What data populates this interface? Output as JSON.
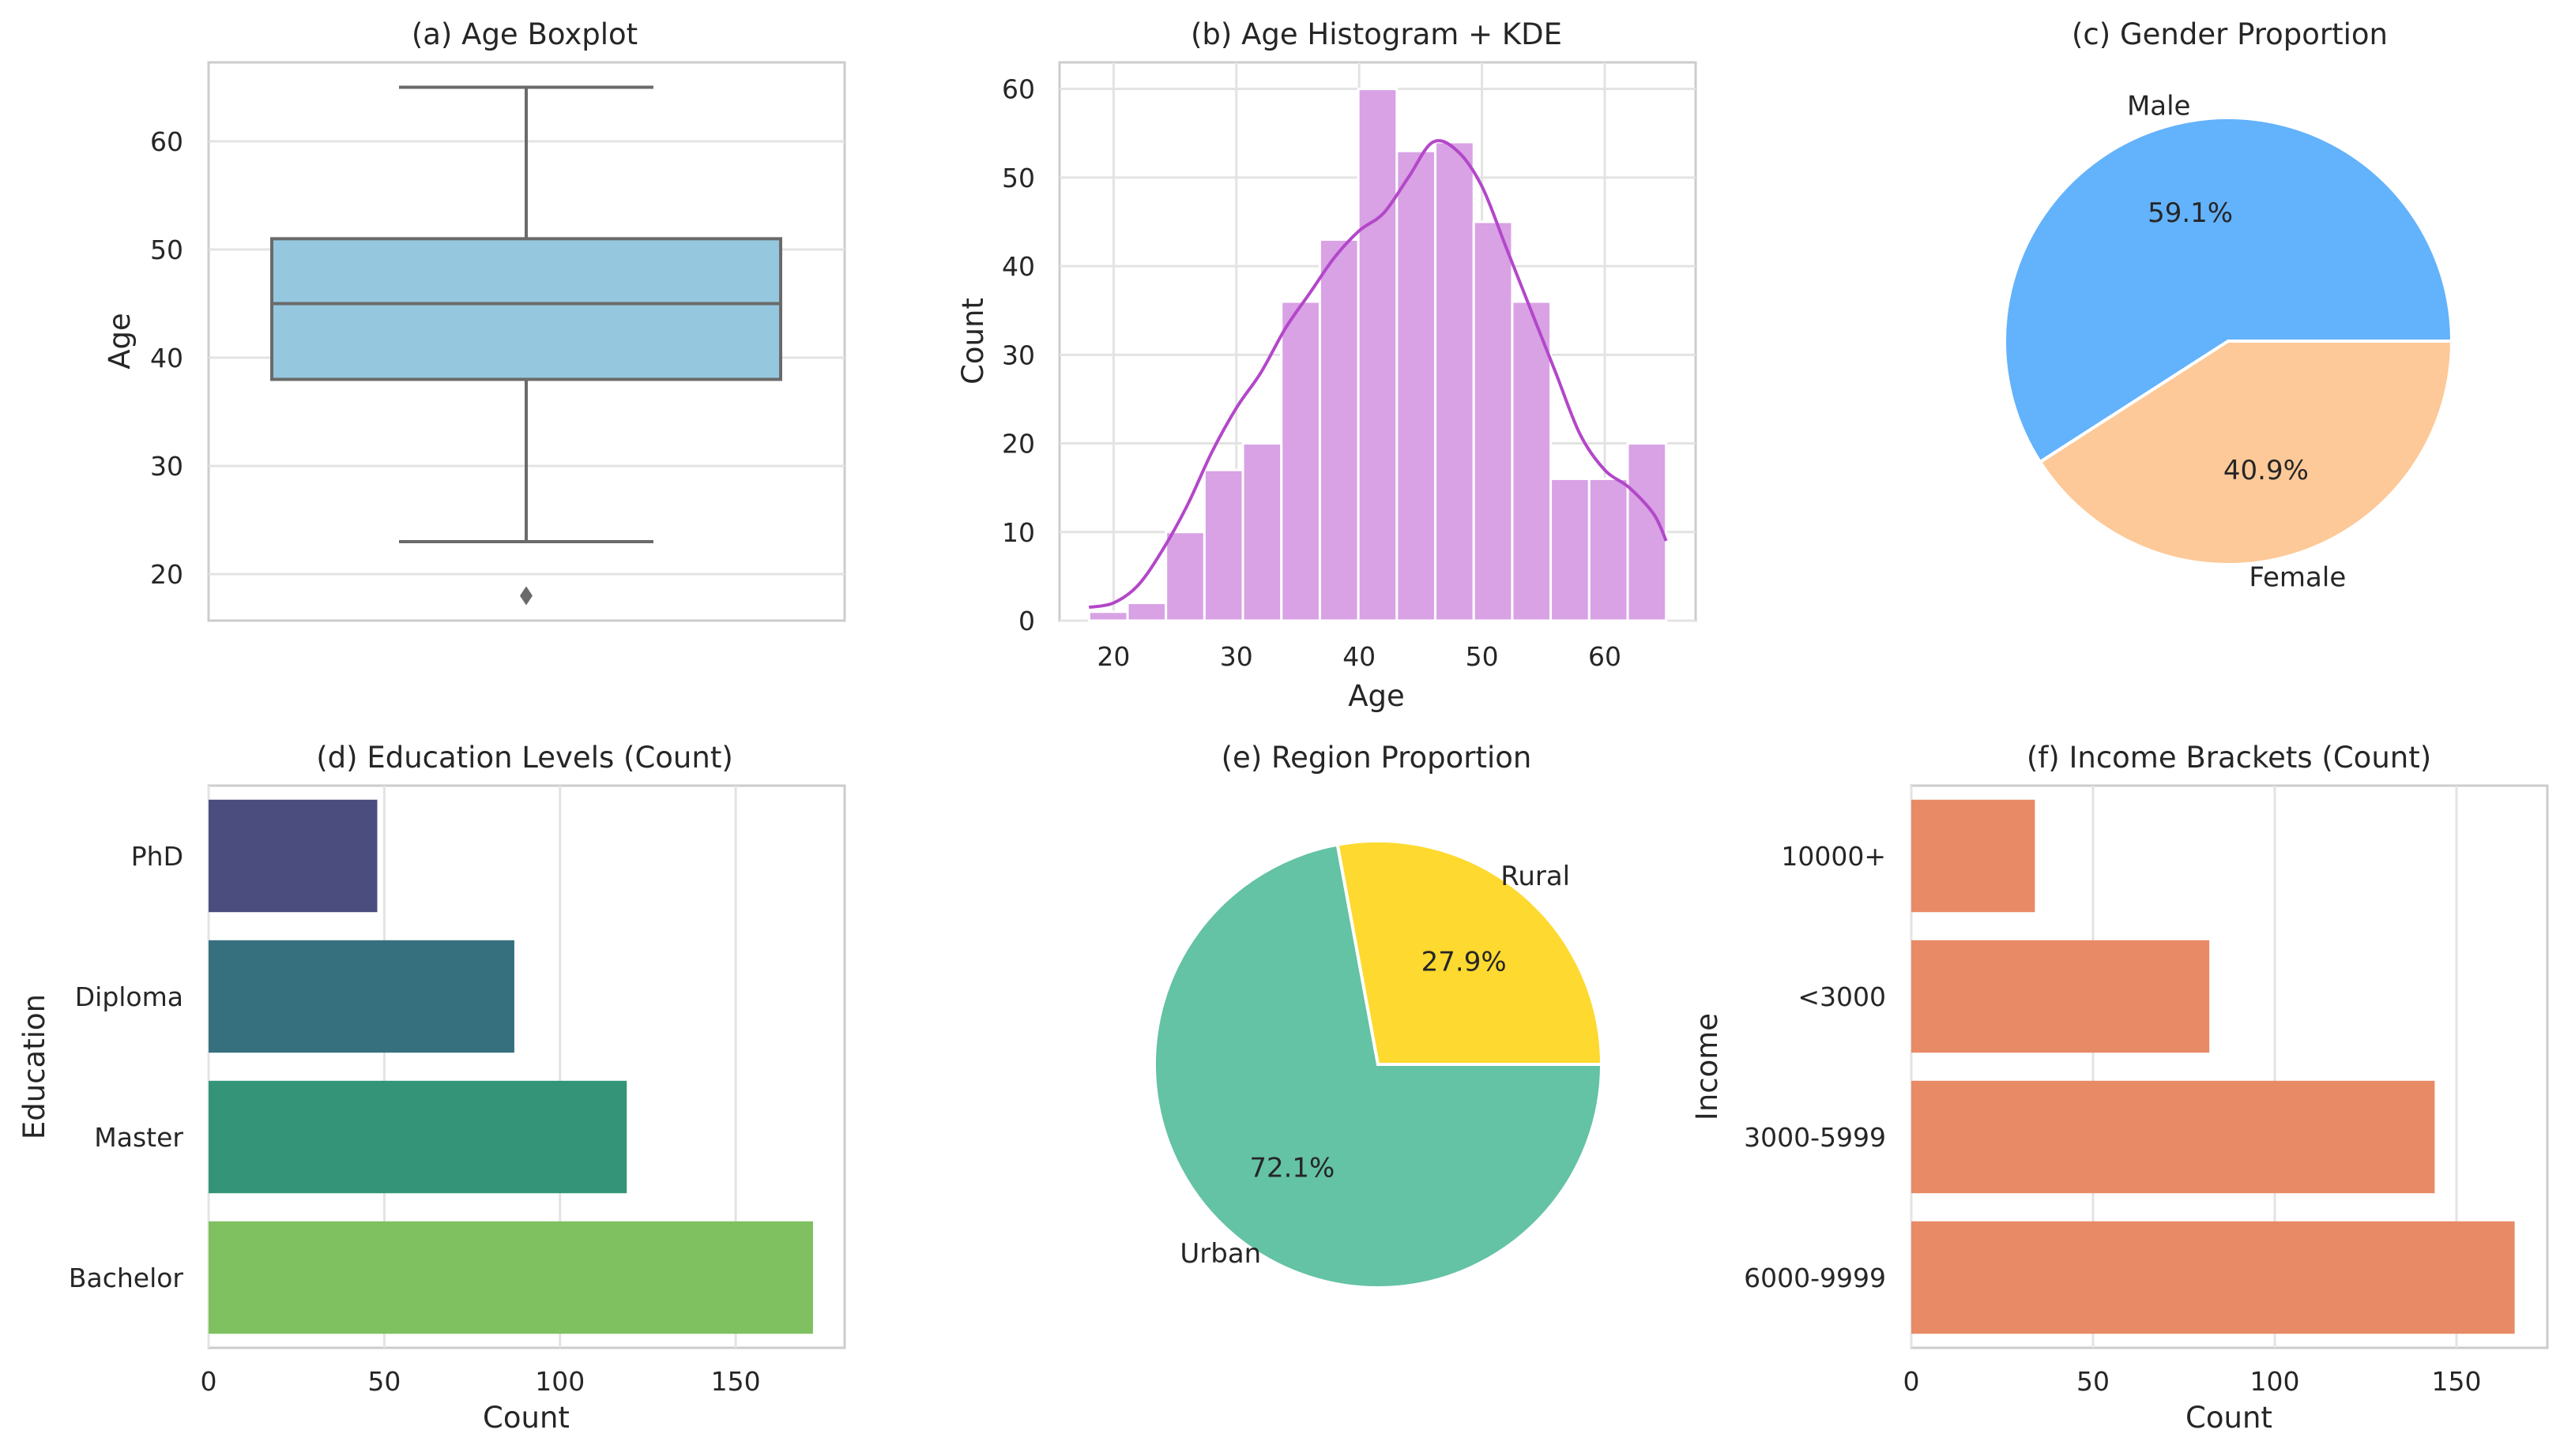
{
  "chart_data": [
    {
      "id": "a",
      "type": "boxplot",
      "title": "(a) Age Boxplot",
      "xlabel": "",
      "ylabel": "Age",
      "ylim": [
        15.7,
        67.3
      ],
      "yticks": [
        20,
        30,
        40,
        50,
        60
      ],
      "box": {
        "whisker_low": 23,
        "q1": 38,
        "median": 45,
        "q3": 51,
        "whisker_high": 65,
        "outliers": [
          18
        ]
      },
      "colors": {
        "box": "#95c8df",
        "edge": "#6a6a6a"
      },
      "grid": true
    },
    {
      "id": "b",
      "type": "bar",
      "subtype": "histogram+kde",
      "title": "(b) Age Histogram + KDE",
      "xlabel": "Age",
      "ylabel": "Count",
      "xlim": [
        15.6,
        67.4
      ],
      "ylim": [
        0,
        63
      ],
      "xticks": [
        20,
        30,
        40,
        50,
        60
      ],
      "yticks": [
        0,
        10,
        20,
        30,
        40,
        50,
        60
      ],
      "bins": {
        "start": 18,
        "end": 65,
        "counts": [
          1,
          2,
          10,
          17,
          20,
          36,
          43,
          60,
          53,
          54,
          45,
          36,
          16,
          16,
          20
        ]
      },
      "kde": [
        [
          18,
          1.5
        ],
        [
          20,
          2
        ],
        [
          22,
          4
        ],
        [
          24,
          8
        ],
        [
          26,
          13
        ],
        [
          28,
          19
        ],
        [
          30,
          24
        ],
        [
          32,
          28
        ],
        [
          34,
          33
        ],
        [
          36,
          37
        ],
        [
          38,
          41
        ],
        [
          40,
          44
        ],
        [
          42,
          46
        ],
        [
          44,
          50
        ],
        [
          46,
          54
        ],
        [
          48,
          53
        ],
        [
          50,
          49
        ],
        [
          52,
          42
        ],
        [
          54,
          35
        ],
        [
          56,
          28
        ],
        [
          58,
          21
        ],
        [
          60,
          17
        ],
        [
          62,
          15
        ],
        [
          64,
          12
        ],
        [
          65,
          9
        ]
      ],
      "colors": {
        "bar": "#d8a2e4",
        "kde": "#b347c9"
      },
      "grid": true
    },
    {
      "id": "c",
      "type": "pie",
      "title": "(c) Gender Proportion",
      "slices": [
        {
          "label": "Male",
          "pct": "59.1%",
          "value": 59.1,
          "color": "#63b2fc"
        },
        {
          "label": "Female",
          "pct": "40.9%",
          "value": 40.9,
          "color": "#fdc998"
        }
      ]
    },
    {
      "id": "d",
      "type": "bar",
      "orientation": "horizontal",
      "title": "(d) Education Levels (Count)",
      "xlabel": "Count",
      "ylabel": "Education",
      "xlim": [
        0,
        181
      ],
      "xticks": [
        0,
        50,
        100,
        150
      ],
      "categories": [
        "PhD",
        "Diploma",
        "Master",
        "Bachelor"
      ],
      "values": [
        48,
        87,
        119,
        172
      ],
      "colors": [
        "#4a4d7d",
        "#36707f",
        "#349478",
        "#7fc160"
      ],
      "grid": true
    },
    {
      "id": "e",
      "type": "pie",
      "title": "(e) Region Proportion",
      "slices": [
        {
          "label": "Urban",
          "pct": "72.1%",
          "value": 72.1,
          "color": "#64c2a5"
        },
        {
          "label": "Rural",
          "pct": "27.9%",
          "value": 27.9,
          "color": "#fed92f"
        }
      ]
    },
    {
      "id": "f",
      "type": "bar",
      "orientation": "horizontal",
      "title": "(f) Income Brackets (Count)",
      "xlabel": "Count",
      "ylabel": "Income",
      "xlim": [
        0,
        175
      ],
      "xticks": [
        0,
        50,
        100,
        150
      ],
      "categories": [
        "10000+",
        "<3000",
        "3000-5999",
        "6000-9999"
      ],
      "values": [
        34,
        82,
        144,
        166
      ],
      "colors": [
        "#e98a67",
        "#e98a67",
        "#e98a67",
        "#e98a67"
      ],
      "grid": true
    }
  ]
}
